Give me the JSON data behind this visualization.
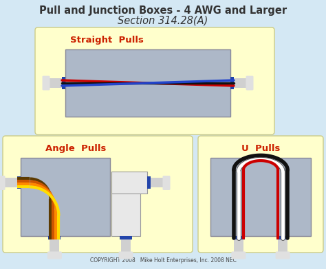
{
  "title_line1": "Pull and Junction Boxes - 4 AWG and Larger",
  "title_line2": "Section 314.28(A)",
  "bg_color": "#d4e8f4",
  "panel_color": "#ffffcc",
  "box_color": "#adb8c8",
  "straight_label": "Straight  Pulls",
  "angle_label": "Angle  Pulls",
  "u_label": "U  Pulls",
  "label_color": "#cc2200",
  "copyright": "COPYRIGHT 2008   Mike Holt Enterprises, Inc. 2008 NEC",
  "connector_color": "#2244aa",
  "conduit_color": "#cccccc",
  "title_color": "#333333"
}
